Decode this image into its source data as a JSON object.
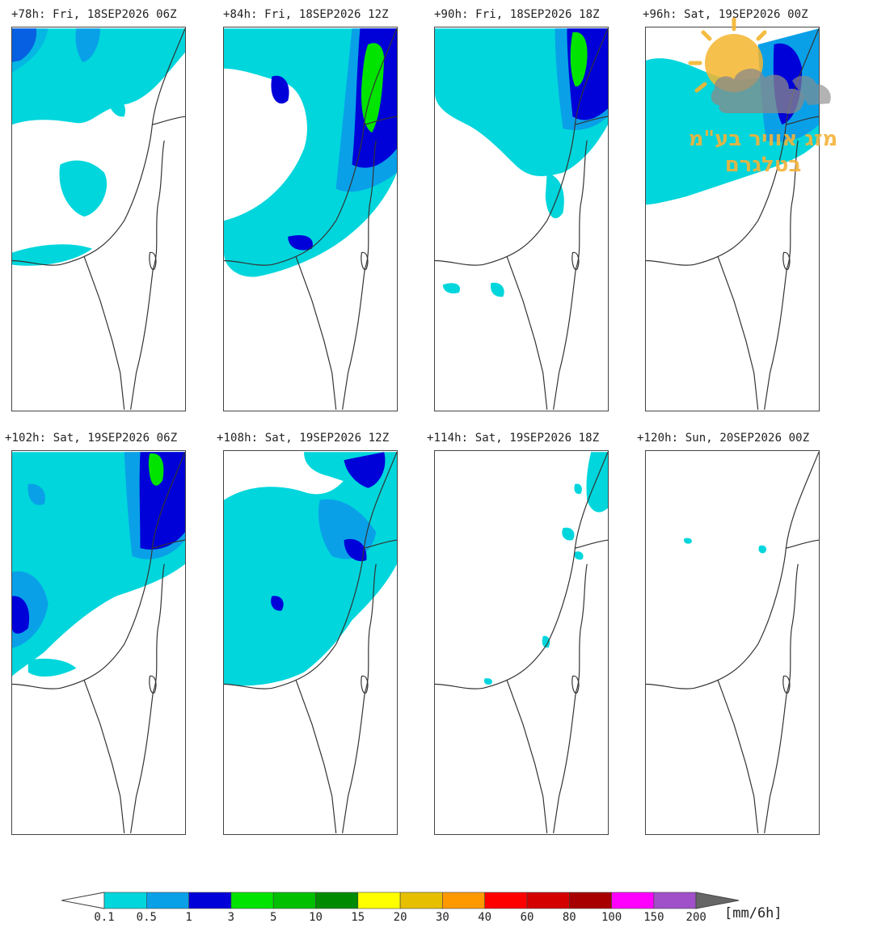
{
  "panels": [
    {
      "title": "+78h: Fri, 18SEP2026 06Z"
    },
    {
      "title": "+84h: Fri, 18SEP2026 12Z"
    },
    {
      "title": "+90h: Fri, 18SEP2026 18Z"
    },
    {
      "title": "+96h: Sat, 19SEP2026 00Z"
    },
    {
      "title": "+102h: Sat, 19SEP2026 06Z"
    },
    {
      "title": "+108h: Sat, 19SEP2026 12Z"
    },
    {
      "title": "+114h: Sat, 19SEP2026 18Z"
    },
    {
      "title": "+120h: Sun, 20SEP2026 00Z"
    }
  ],
  "colorbar": {
    "unit": "[mm/6h]",
    "levels": [
      "0.1",
      "0.5",
      "1",
      "3",
      "5",
      "10",
      "15",
      "20",
      "30",
      "40",
      "60",
      "80",
      "100",
      "150",
      "200"
    ],
    "colors": [
      "#00d6dc",
      "#0aa0e8",
      "#0000d8",
      "#00e400",
      "#00c000",
      "#008a00",
      "#ffff00",
      "#e6c000",
      "#ff9900",
      "#ff0000",
      "#d40000",
      "#a80000",
      "#ff00ff",
      "#a050c8"
    ]
  },
  "watermark": {
    "line1": "מזג אוויר בע\"מ",
    "line2": "בטלגרם",
    "sun_color": "#f5b52e",
    "cloud_color": "#8a8a8a"
  }
}
